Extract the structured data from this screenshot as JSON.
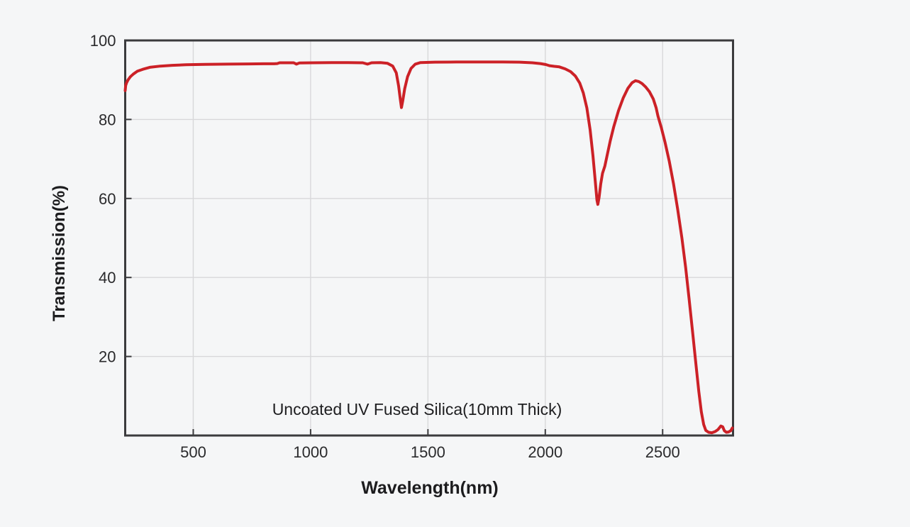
{
  "colors": {
    "background": "#f5f6f7",
    "axis": "#3b3b3d",
    "grid": "#d8d8da",
    "text": "#2a2a2c",
    "curve": "#cc2127"
  },
  "chart_data": {
    "type": "line",
    "title": "",
    "xlabel": "Wavelength(nm)",
    "ylabel": "Transmission(%)",
    "annotation": "Uncoated UV Fused Silica(10mm Thick)",
    "xlim": [
      210,
      2800
    ],
    "ylim": [
      0,
      100
    ],
    "x_ticks": [
      500,
      1000,
      1500,
      2000,
      2500
    ],
    "y_ticks": [
      20,
      40,
      60,
      80,
      100
    ],
    "grid": true,
    "legend_position": "none",
    "series": [
      {
        "name": "Uncoated UV Fused Silica (10mm Thick)",
        "color": "#cc2127",
        "points": [
          [
            210,
            87.3
          ],
          [
            212,
            88.6
          ],
          [
            216,
            89.3
          ],
          [
            222,
            90.0
          ],
          [
            232,
            90.8
          ],
          [
            245,
            91.5
          ],
          [
            262,
            92.2
          ],
          [
            285,
            92.7
          ],
          [
            315,
            93.2
          ],
          [
            360,
            93.5
          ],
          [
            410,
            93.7
          ],
          [
            470,
            93.85
          ],
          [
            550,
            93.95
          ],
          [
            650,
            94.0
          ],
          [
            740,
            94.05
          ],
          [
            800,
            94.1
          ],
          [
            845,
            94.1
          ],
          [
            858,
            94.15
          ],
          [
            868,
            94.35
          ],
          [
            900,
            94.35
          ],
          [
            928,
            94.35
          ],
          [
            940,
            94.0
          ],
          [
            953,
            94.3
          ],
          [
            1010,
            94.35
          ],
          [
            1090,
            94.4
          ],
          [
            1160,
            94.4
          ],
          [
            1222,
            94.35
          ],
          [
            1243,
            94.0
          ],
          [
            1260,
            94.35
          ],
          [
            1298,
            94.4
          ],
          [
            1328,
            94.2
          ],
          [
            1350,
            93.5
          ],
          [
            1365,
            91.8
          ],
          [
            1375,
            88.5
          ],
          [
            1382,
            85.2
          ],
          [
            1387,
            83.0
          ],
          [
            1393,
            84.8
          ],
          [
            1401,
            87.8
          ],
          [
            1413,
            90.8
          ],
          [
            1428,
            92.9
          ],
          [
            1446,
            94.0
          ],
          [
            1468,
            94.4
          ],
          [
            1530,
            94.5
          ],
          [
            1620,
            94.55
          ],
          [
            1720,
            94.55
          ],
          [
            1820,
            94.55
          ],
          [
            1890,
            94.5
          ],
          [
            1945,
            94.35
          ],
          [
            1978,
            94.15
          ],
          [
            2002,
            93.9
          ],
          [
            2018,
            93.6
          ],
          [
            2038,
            93.45
          ],
          [
            2060,
            93.3
          ],
          [
            2085,
            92.8
          ],
          [
            2108,
            92.1
          ],
          [
            2128,
            91.0
          ],
          [
            2147,
            89.2
          ],
          [
            2162,
            86.7
          ],
          [
            2177,
            82.9
          ],
          [
            2191,
            77.4
          ],
          [
            2203,
            70.8
          ],
          [
            2213,
            64.3
          ],
          [
            2220,
            59.6
          ],
          [
            2224,
            58.5
          ],
          [
            2229,
            60.2
          ],
          [
            2236,
            63.6
          ],
          [
            2244,
            66.4
          ],
          [
            2254,
            68.2
          ],
          [
            2264,
            71.0
          ],
          [
            2277,
            74.6
          ],
          [
            2292,
            78.2
          ],
          [
            2312,
            82.2
          ],
          [
            2332,
            85.4
          ],
          [
            2352,
            87.9
          ],
          [
            2370,
            89.3
          ],
          [
            2384,
            89.8
          ],
          [
            2398,
            89.6
          ],
          [
            2412,
            89.1
          ],
          [
            2428,
            88.2
          ],
          [
            2444,
            87.0
          ],
          [
            2460,
            85.2
          ],
          [
            2472,
            83.0
          ],
          [
            2480,
            80.9
          ],
          [
            2495,
            77.8
          ],
          [
            2510,
            74.3
          ],
          [
            2528,
            69.5
          ],
          [
            2546,
            63.8
          ],
          [
            2564,
            57.3
          ],
          [
            2582,
            50.0
          ],
          [
            2598,
            42.5
          ],
          [
            2613,
            34.5
          ],
          [
            2628,
            26.0
          ],
          [
            2642,
            18.0
          ],
          [
            2654,
            11.2
          ],
          [
            2665,
            6.0
          ],
          [
            2675,
            2.8
          ],
          [
            2684,
            1.3
          ],
          [
            2696,
            0.8
          ],
          [
            2710,
            0.7
          ],
          [
            2724,
            1.0
          ],
          [
            2736,
            1.5
          ],
          [
            2748,
            2.4
          ],
          [
            2756,
            2.2
          ],
          [
            2763,
            1.2
          ],
          [
            2772,
            0.8
          ],
          [
            2781,
            0.9
          ],
          [
            2790,
            1.2
          ],
          [
            2797,
            1.9
          ]
        ]
      }
    ]
  }
}
